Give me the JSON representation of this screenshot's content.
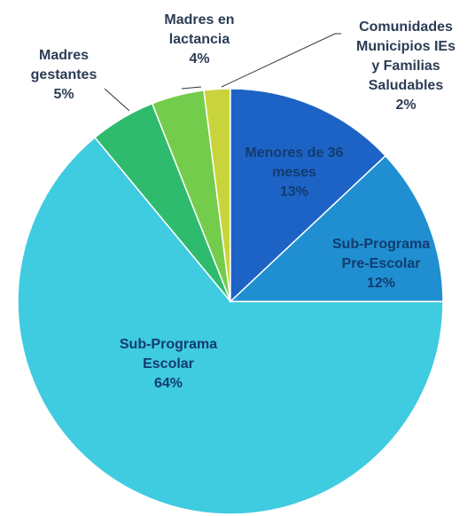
{
  "chart_data": {
    "type": "pie",
    "categories": [
      "Menores de 36 meses",
      "Sub-Programa Pre-Escolar",
      "Sub-Programa Escolar",
      "Madres gestantes",
      "Madres en lactancia",
      "Comunidades Municipios IEs y Familias Saludables"
    ],
    "values": [
      13,
      12,
      64,
      5,
      4,
      2
    ],
    "value_labels": [
      "13%",
      "12%",
      "64%",
      "5%",
      "4%",
      "2%"
    ],
    "colors": [
      "#1d63c6",
      "#1f8fd2",
      "#3fcbe0",
      "#2fbb6e",
      "#74cc4c",
      "#c9d43c"
    ]
  }
}
